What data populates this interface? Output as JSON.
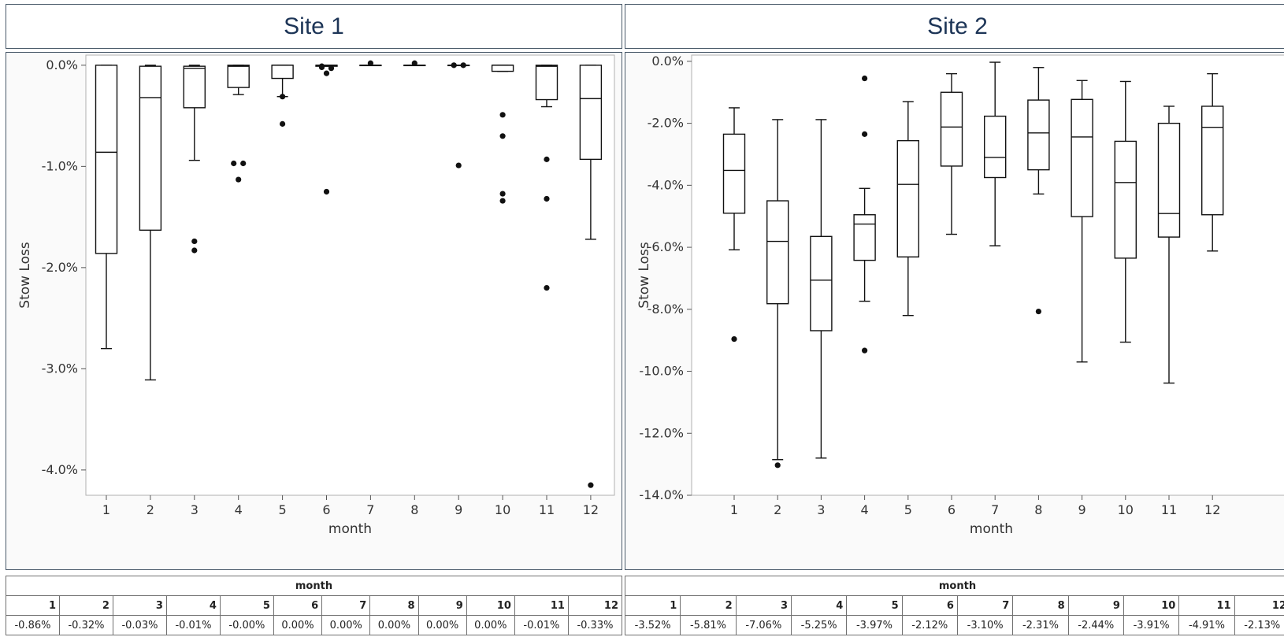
{
  "panels": [
    {
      "title": "Site 1"
    },
    {
      "title": "Site 2"
    }
  ],
  "chart_data": [
    {
      "type": "box",
      "title": "Site 1",
      "xlabel": "month",
      "ylabel": "Stow Loss",
      "categories": [
        "1",
        "2",
        "3",
        "4",
        "5",
        "6",
        "7",
        "8",
        "9",
        "10",
        "11",
        "12"
      ],
      "ylim": [
        -4.25,
        0.1
      ],
      "yticks": [
        {
          "value": 0.0,
          "label": "0.0%"
        },
        {
          "value": -1.0,
          "label": "-1.0%"
        },
        {
          "value": -2.0,
          "label": "-2.0%"
        },
        {
          "value": -3.0,
          "label": "-3.0%"
        },
        {
          "value": -4.0,
          "label": "-4.0%"
        }
      ],
      "grid": false,
      "boxes": [
        {
          "month": "1",
          "whisker_high": 0.0,
          "q3": 0.0,
          "median": -0.86,
          "q1": -1.86,
          "whisker_low": -2.8,
          "outliers": []
        },
        {
          "month": "2",
          "whisker_high": 0.0,
          "q3": -0.01,
          "median": -0.32,
          "q1": -1.63,
          "whisker_low": -3.11,
          "outliers": []
        },
        {
          "month": "3",
          "whisker_high": 0.0,
          "q3": -0.01,
          "median": -0.03,
          "q1": -0.42,
          "whisker_low": -0.94,
          "outliers": [
            -1.74,
            -1.83
          ]
        },
        {
          "month": "4",
          "whisker_high": 0.0,
          "q3": 0.0,
          "median": -0.01,
          "q1": -0.22,
          "whisker_low": -0.29,
          "outliers": [
            -0.97,
            -0.97,
            -1.13
          ]
        },
        {
          "month": "5",
          "whisker_high": 0.0,
          "q3": 0.0,
          "median": -0.0,
          "q1": -0.13,
          "whisker_low": -0.31,
          "outliers": [
            -0.31,
            -0.58
          ]
        },
        {
          "month": "6",
          "whisker_high": 0.0,
          "q3": 0.0,
          "median": 0.0,
          "q1": -0.01,
          "whisker_low": -0.01,
          "outliers": [
            -0.01,
            -0.03,
            -0.02,
            -0.08,
            -1.25
          ]
        },
        {
          "month": "7",
          "whisker_high": 0.0,
          "q3": 0.0,
          "median": 0.0,
          "q1": 0.0,
          "whisker_low": 0.0,
          "outliers": [
            0.02
          ]
        },
        {
          "month": "8",
          "whisker_high": 0.0,
          "q3": 0.0,
          "median": 0.0,
          "q1": 0.0,
          "whisker_low": 0.0,
          "outliers": [
            0.02
          ]
        },
        {
          "month": "9",
          "whisker_high": 0.0,
          "q3": 0.0,
          "median": 0.0,
          "q1": 0.0,
          "whisker_low": 0.0,
          "outliers": [
            0.0,
            0.0,
            -0.99
          ]
        },
        {
          "month": "10",
          "whisker_high": 0.0,
          "q3": 0.0,
          "median": 0.0,
          "q1": -0.06,
          "whisker_low": -0.06,
          "outliers": [
            -0.49,
            -0.7,
            -1.27,
            -1.34
          ]
        },
        {
          "month": "11",
          "whisker_high": 0.0,
          "q3": 0.0,
          "median": -0.01,
          "q1": -0.34,
          "whisker_low": -0.41,
          "outliers": [
            -0.93,
            -1.32,
            -2.2
          ]
        },
        {
          "month": "12",
          "whisker_high": 0.0,
          "q3": 0.0,
          "median": -0.33,
          "q1": -0.93,
          "whisker_low": -1.72,
          "outliers": [
            -4.15
          ]
        }
      ]
    },
    {
      "type": "box",
      "title": "Site 2",
      "xlabel": "month",
      "ylabel": "Stow Loss",
      "categories": [
        "1",
        "2",
        "3",
        "4",
        "5",
        "6",
        "7",
        "8",
        "9",
        "10",
        "11",
        "12"
      ],
      "ylim": [
        -14.0,
        0.2
      ],
      "yticks": [
        {
          "value": 0.0,
          "label": "0.0%"
        },
        {
          "value": -2.0,
          "label": "-2.0%"
        },
        {
          "value": -4.0,
          "label": "-4.0%"
        },
        {
          "value": -6.0,
          "label": "-6.0%"
        },
        {
          "value": -8.0,
          "label": "-8.0%"
        },
        {
          "value": -10.0,
          "label": "-10.0%"
        },
        {
          "value": -12.0,
          "label": "-12.0%"
        },
        {
          "value": -14.0,
          "label": "-14.0%"
        }
      ],
      "grid": false,
      "boxes": [
        {
          "month": "1",
          "whisker_high": -1.5,
          "q3": -2.35,
          "median": -3.52,
          "q1": -4.9,
          "whisker_low": -6.08,
          "outliers": [
            -8.96
          ]
        },
        {
          "month": "2",
          "whisker_high": -1.88,
          "q3": -4.5,
          "median": -5.81,
          "q1": -7.82,
          "whisker_low": -12.85,
          "outliers": [
            -13.03
          ]
        },
        {
          "month": "3",
          "whisker_high": -1.88,
          "q3": -5.65,
          "median": -7.06,
          "q1": -8.69,
          "whisker_low": -12.8,
          "outliers": []
        },
        {
          "month": "4",
          "whisker_high": -4.1,
          "q3": -4.95,
          "median": -5.25,
          "q1": -6.42,
          "whisker_low": -7.74,
          "outliers": [
            -0.55,
            -2.35,
            -9.33
          ]
        },
        {
          "month": "5",
          "whisker_high": -1.3,
          "q3": -2.56,
          "median": -3.97,
          "q1": -6.31,
          "whisker_low": -8.2,
          "outliers": []
        },
        {
          "month": "6",
          "whisker_high": -0.4,
          "q3": -1.0,
          "median": -2.12,
          "q1": -3.38,
          "whisker_low": -5.58,
          "outliers": []
        },
        {
          "month": "7",
          "whisker_high": -0.03,
          "q3": -1.77,
          "median": -3.1,
          "q1": -3.75,
          "whisker_low": -5.95,
          "outliers": []
        },
        {
          "month": "8",
          "whisker_high": -0.2,
          "q3": -1.25,
          "median": -2.31,
          "q1": -3.5,
          "whisker_low": -4.28,
          "outliers": [
            -8.07
          ]
        },
        {
          "month": "9",
          "whisker_high": -0.62,
          "q3": -1.23,
          "median": -2.44,
          "q1": -5.01,
          "whisker_low": -9.7,
          "outliers": []
        },
        {
          "month": "10",
          "whisker_high": -0.65,
          "q3": -2.58,
          "median": -3.91,
          "q1": -6.35,
          "whisker_low": -9.06,
          "outliers": []
        },
        {
          "month": "11",
          "whisker_high": -1.45,
          "q3": -2.0,
          "median": -4.91,
          "q1": -5.67,
          "whisker_low": -10.38,
          "outliers": []
        },
        {
          "month": "12",
          "whisker_high": -0.4,
          "q3": -1.45,
          "median": -2.13,
          "q1": -4.95,
          "whisker_low": -6.12,
          "outliers": []
        }
      ]
    }
  ],
  "tables": [
    {
      "header": "month",
      "months": [
        "1",
        "2",
        "3",
        "4",
        "5",
        "6",
        "7",
        "8",
        "9",
        "10",
        "11",
        "12"
      ],
      "values": [
        "-0.86%",
        "-0.32%",
        "-0.03%",
        "-0.01%",
        "-0.00%",
        "0.00%",
        "0.00%",
        "0.00%",
        "0.00%",
        "0.00%",
        "-0.01%",
        "-0.33%"
      ]
    },
    {
      "header": "month",
      "months": [
        "1",
        "2",
        "3",
        "4",
        "5",
        "6",
        "7",
        "8",
        "9",
        "10",
        "11",
        "12"
      ],
      "values": [
        "-3.52%",
        "-5.81%",
        "-7.06%",
        "-5.25%",
        "-3.97%",
        "-2.12%",
        "-3.10%",
        "-2.31%",
        "-2.44%",
        "-3.91%",
        "-4.91%",
        "-2.13%"
      ]
    }
  ]
}
